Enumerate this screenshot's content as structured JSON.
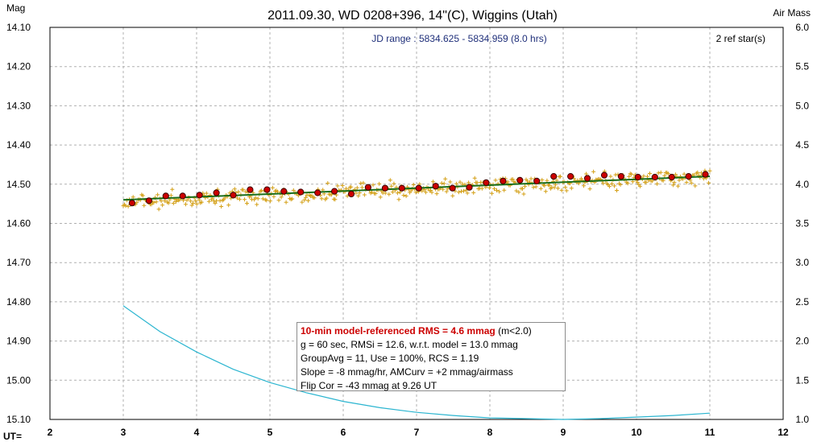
{
  "chart_data": {
    "type": "scatter",
    "title": "2011.09.30, WD 0208+396, 14\"(C), Wiggins (Utah)",
    "ylabel": "Mag",
    "y2label": "Air Mass",
    "xlabel": "UT=",
    "xlim": [
      2,
      12
    ],
    "ylim": [
      14.1,
      15.1
    ],
    "y_inverted": true,
    "y2lim": [
      1.0,
      6.0
    ],
    "grid": true,
    "x_ticks": [
      "2",
      "3",
      "4",
      "5",
      "6",
      "7",
      "8",
      "9",
      "10",
      "11",
      "12"
    ],
    "y_ticks": [
      "14.10",
      "14.20",
      "14.30",
      "14.40",
      "14.50",
      "14.60",
      "14.70",
      "14.80",
      "14.90",
      "15.00",
      "15.10"
    ],
    "y2_ticks": [
      "6.0",
      "5.5",
      "5.0",
      "4.5",
      "4.0",
      "3.5",
      "3.0",
      "2.5",
      "2.0",
      "1.5",
      "1.0"
    ],
    "annotations": {
      "jd_range": "JD range : 5834.625 - 5834.959 (8.0 hrs)",
      "ref_stars": "2 ref star(s)"
    },
    "group_avg": {
      "x": [
        3.12,
        3.35,
        3.58,
        3.81,
        4.04,
        4.27,
        4.5,
        4.73,
        4.96,
        5.19,
        5.42,
        5.65,
        5.88,
        6.11,
        6.34,
        6.57,
        6.8,
        7.03,
        7.26,
        7.49,
        7.72,
        7.95,
        8.18,
        8.41,
        8.64,
        8.87,
        9.1,
        9.33,
        9.56,
        9.79,
        10.02,
        10.25,
        10.48,
        10.71,
        10.94
      ],
      "y": [
        14.548,
        14.542,
        14.53,
        14.53,
        14.528,
        14.522,
        14.528,
        14.514,
        14.514,
        14.518,
        14.52,
        14.522,
        14.518,
        14.525,
        14.508,
        14.51,
        14.51,
        14.51,
        14.505,
        14.51,
        14.508,
        14.496,
        14.492,
        14.49,
        14.492,
        14.48,
        14.48,
        14.485,
        14.477,
        14.48,
        14.482,
        14.482,
        14.482,
        14.48,
        14.475
      ]
    },
    "raw": {
      "x_range": [
        3.0,
        11.0
      ],
      "y_center_start": 14.545,
      "y_center_end": 14.48,
      "scatter_mmag": 12.6,
      "count": 480
    },
    "model_line": {
      "x": [
        3.0,
        11.0
      ],
      "y": [
        14.54,
        14.48
      ]
    },
    "airmass": {
      "x": [
        3.0,
        3.5,
        4.0,
        4.5,
        5.0,
        5.5,
        6.0,
        6.5,
        7.0,
        7.5,
        8.0,
        8.5,
        9.0,
        9.5,
        10.0,
        10.5,
        11.0
      ],
      "y": [
        2.45,
        2.12,
        1.86,
        1.64,
        1.47,
        1.34,
        1.23,
        1.15,
        1.09,
        1.05,
        1.02,
        1.01,
        1.0,
        1.01,
        1.03,
        1.05,
        1.08
      ]
    },
    "colors": {
      "raw": "#d4a017",
      "group": "#cc0000",
      "model": "#1a6e1a",
      "airmass": "#2bb5d0",
      "grid": "#b0b0b0"
    },
    "legend": {
      "line1_bold": "10-min model-referenced RMS = 4.6 mmag",
      "line1_rest": " (m<2.0)",
      "line2": "g = 60 sec, RMSi = 12.6, w.r.t. model = 13.0 mmag",
      "line3": "GroupAvg = 11, Use = 100%, RCS = 1.19",
      "line4": "Slope = -8 mmag/hr, AMCurv = +2 mmag/airmass",
      "line5": "Flip Cor = -43 mmag at 9.26 UT"
    }
  }
}
